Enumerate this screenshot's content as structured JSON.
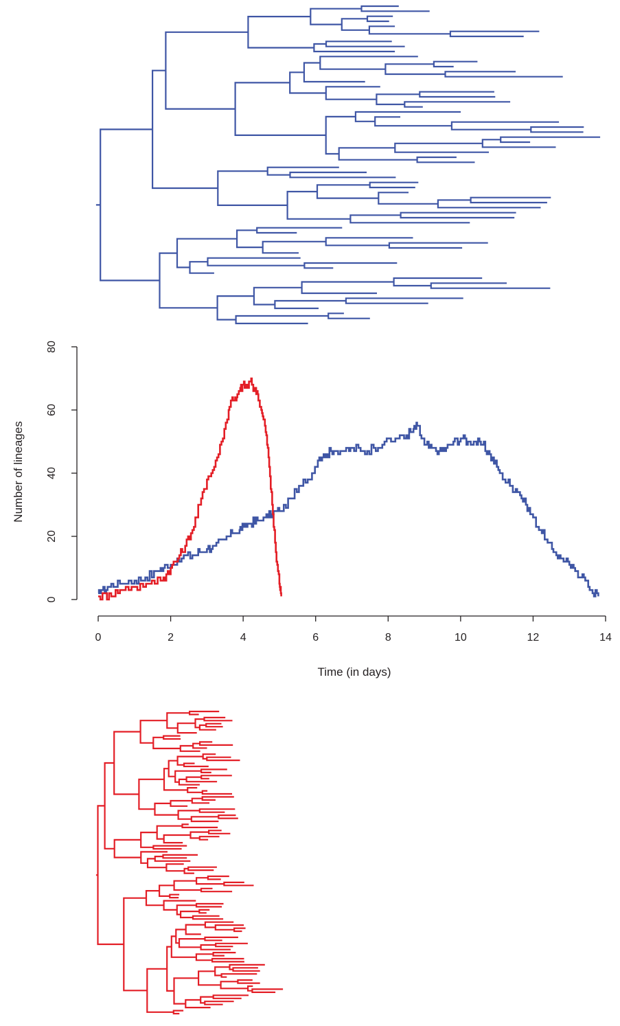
{
  "chart_data": [
    {
      "type": "tree",
      "color": "#3f56a5",
      "orientation": "horizontal",
      "tips": 64,
      "max_depth_days": 13.8
    },
    {
      "type": "line",
      "xlabel": "Time (in days)",
      "ylabel": "Number of lineages",
      "xlim": [
        0,
        14
      ],
      "ylim": [
        0,
        80
      ],
      "xticks": [
        "0",
        "2",
        "4",
        "6",
        "8",
        "10",
        "12",
        "14"
      ],
      "yticks": [
        "0",
        "20",
        "40",
        "60",
        "80"
      ],
      "grid": false,
      "legend": "none",
      "series": [
        {
          "color": "#3f56a5",
          "x": [
            0,
            0.1,
            0.3,
            0.6,
            1.0,
            1.3,
            1.6,
            1.8,
            2.0,
            2.3,
            2.6,
            2.8,
            3.0,
            3.2,
            3.5,
            3.7,
            3.9,
            4.0,
            4.2,
            4.4,
            4.6,
            4.8,
            5.0,
            5.3,
            5.6,
            5.9,
            6.1,
            6.3,
            6.5,
            6.8,
            7.0,
            7.3,
            7.6,
            7.9,
            8.2,
            8.5,
            8.7,
            8.8,
            9.0,
            9.2,
            9.4,
            9.6,
            9.8,
            10.0,
            10.2,
            10.4,
            10.6,
            10.8,
            11.0,
            11.2,
            11.4,
            11.6,
            11.8,
            12.0,
            12.2,
            12.4,
            12.6,
            12.8,
            13.0,
            13.2,
            13.4,
            13.6,
            13.8
          ],
          "y": [
            2,
            3,
            4,
            5,
            6,
            7,
            9,
            10,
            11,
            13,
            14,
            15,
            16,
            17,
            19,
            21,
            22,
            23,
            24,
            25,
            26,
            27,
            28,
            32,
            36,
            40,
            45,
            46,
            47,
            47,
            48,
            47,
            48,
            50,
            51,
            52,
            54,
            55,
            49,
            48,
            47,
            48,
            50,
            51,
            50,
            50,
            49,
            46,
            42,
            38,
            36,
            34,
            30,
            26,
            22,
            18,
            15,
            13,
            11,
            9,
            7,
            3,
            1
          ]
        },
        {
          "color": "#e31e26",
          "x": [
            0,
            0.3,
            0.6,
            1.0,
            1.4,
            1.8,
            2.0,
            2.2,
            2.4,
            2.6,
            2.8,
            3.0,
            3.2,
            3.4,
            3.6,
            3.7,
            3.8,
            3.9,
            4.0,
            4.1,
            4.2,
            4.3,
            4.4,
            4.5,
            4.6,
            4.7,
            4.8,
            4.9,
            5.0,
            5.05
          ],
          "y": [
            1,
            2,
            3,
            4,
            5,
            7,
            10,
            13,
            17,
            22,
            30,
            38,
            42,
            50,
            60,
            64,
            63,
            66,
            68,
            67,
            69,
            67,
            65,
            60,
            55,
            45,
            30,
            15,
            5,
            1
          ]
        }
      ]
    },
    {
      "type": "tree",
      "color": "#e31e26",
      "orientation": "horizontal",
      "tips": 100,
      "max_depth_days": 5.05
    }
  ]
}
